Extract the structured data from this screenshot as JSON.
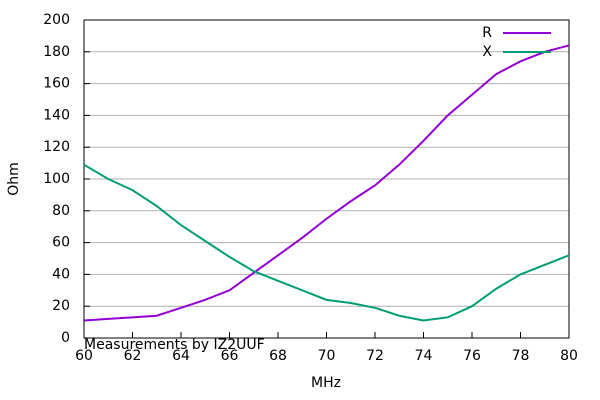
{
  "chart_data": {
    "type": "line",
    "xlabel": "MHz",
    "ylabel": "Ohm",
    "annotation": "Measurements by IZ2UUF",
    "x": [
      60,
      61,
      62,
      63,
      64,
      65,
      66,
      67,
      68,
      69,
      70,
      71,
      72,
      73,
      74,
      75,
      76,
      77,
      78,
      79,
      80
    ],
    "series": [
      {
        "name": "R",
        "color": "#9400d3",
        "values": [
          11,
          12,
          13,
          14,
          19,
          24,
          30,
          41,
          52,
          63,
          75,
          86,
          96,
          109,
          124,
          140,
          153,
          166,
          174,
          180,
          184
        ]
      },
      {
        "name": "X",
        "color": "#009e73",
        "values": [
          109,
          100,
          93,
          83,
          71,
          61,
          51,
          42,
          36,
          30,
          24,
          22,
          19,
          14,
          11,
          13,
          20,
          31,
          40,
          46,
          52
        ]
      }
    ],
    "xlim": [
      60,
      80
    ],
    "xticks": [
      60,
      62,
      64,
      66,
      68,
      70,
      72,
      74,
      76,
      78,
      80
    ],
    "ylim": [
      0,
      200
    ],
    "yticks": [
      0,
      20,
      40,
      60,
      80,
      100,
      120,
      140,
      160,
      180,
      200
    ],
    "grid": true,
    "legend": "top-right"
  }
}
